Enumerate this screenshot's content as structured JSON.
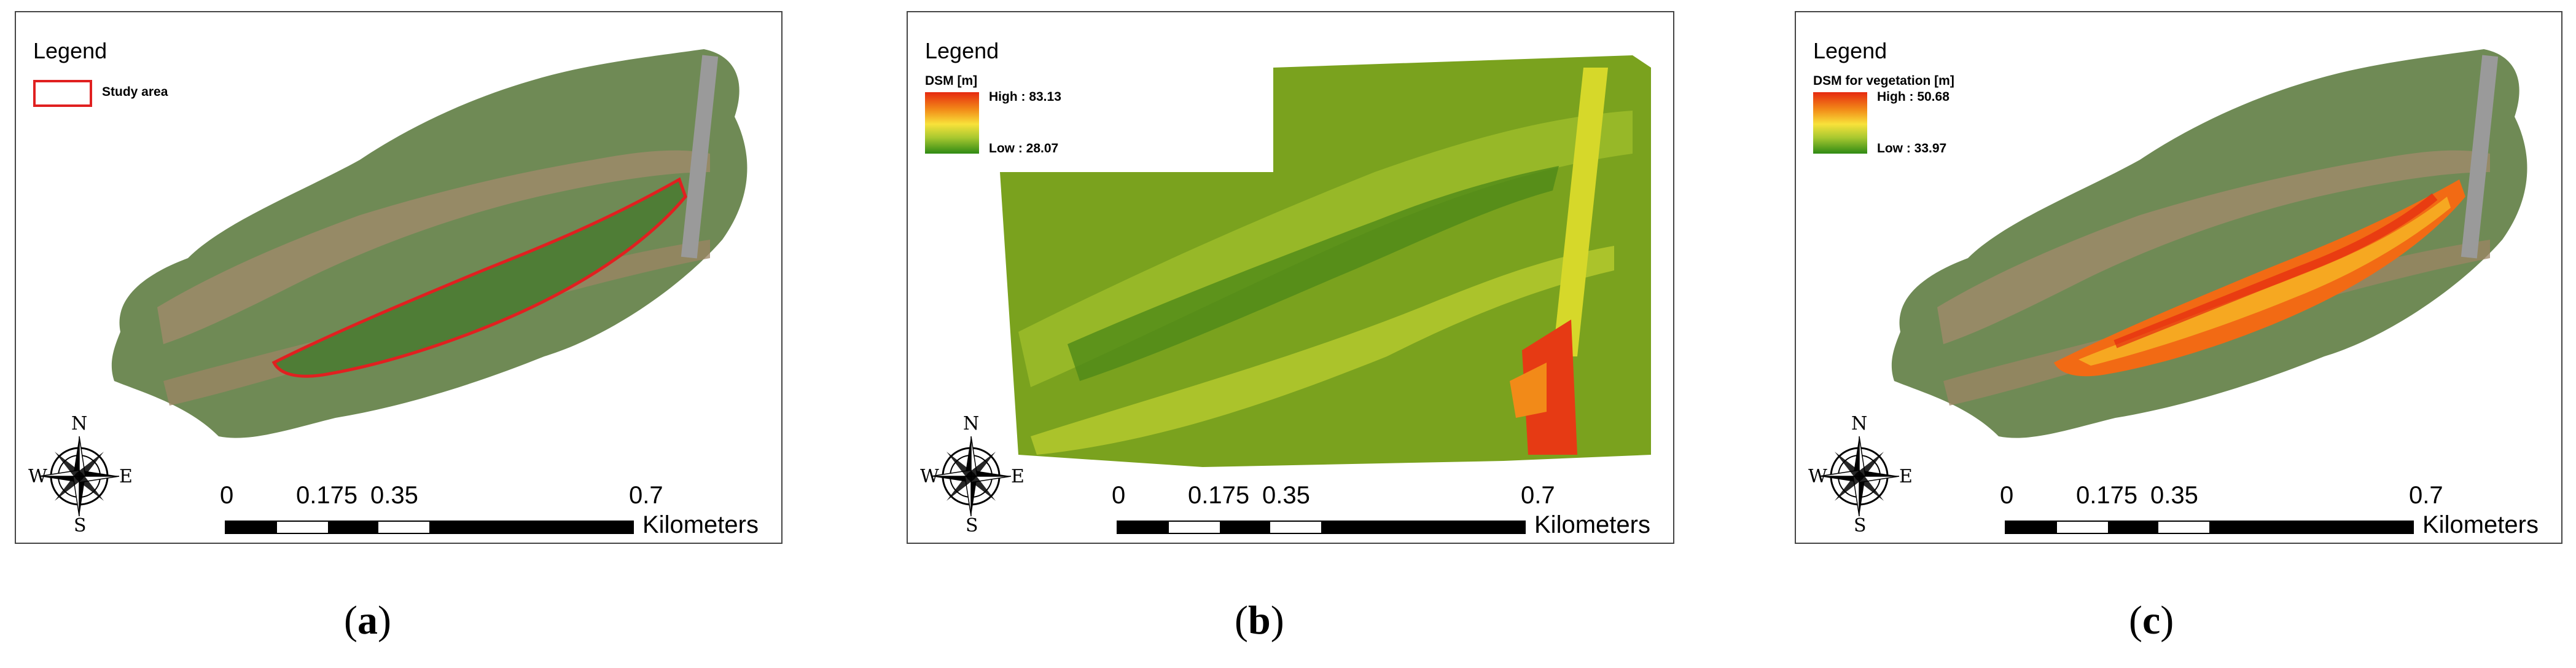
{
  "panels": {
    "a": {
      "legend_title": "Legend",
      "legend_item": "Study area",
      "caption_letter": "a"
    },
    "b": {
      "legend_title": "Legend",
      "ramp_title": "DSM [m]",
      "high_label": "High : 83.13",
      "low_label": "Low : 28.07",
      "caption_letter": "b"
    },
    "c": {
      "legend_title": "Legend",
      "ramp_title": "DSM for vegetation [m]",
      "high_label": "High : 50.68",
      "low_label": "Low : 33.97",
      "caption_letter": "c"
    }
  },
  "compass": {
    "n": "N",
    "s": "S",
    "w": "W",
    "e": "E"
  },
  "scale_bar": {
    "ticks": [
      "0",
      "0.175",
      "0.35",
      "0.7"
    ],
    "unit": "Kilometers"
  },
  "colors": {
    "study_area_outline": "#e02020",
    "dsm_high": "#e62a10",
    "dsm_mid": "#f8e23a",
    "dsm_low": "#2f8a14"
  }
}
